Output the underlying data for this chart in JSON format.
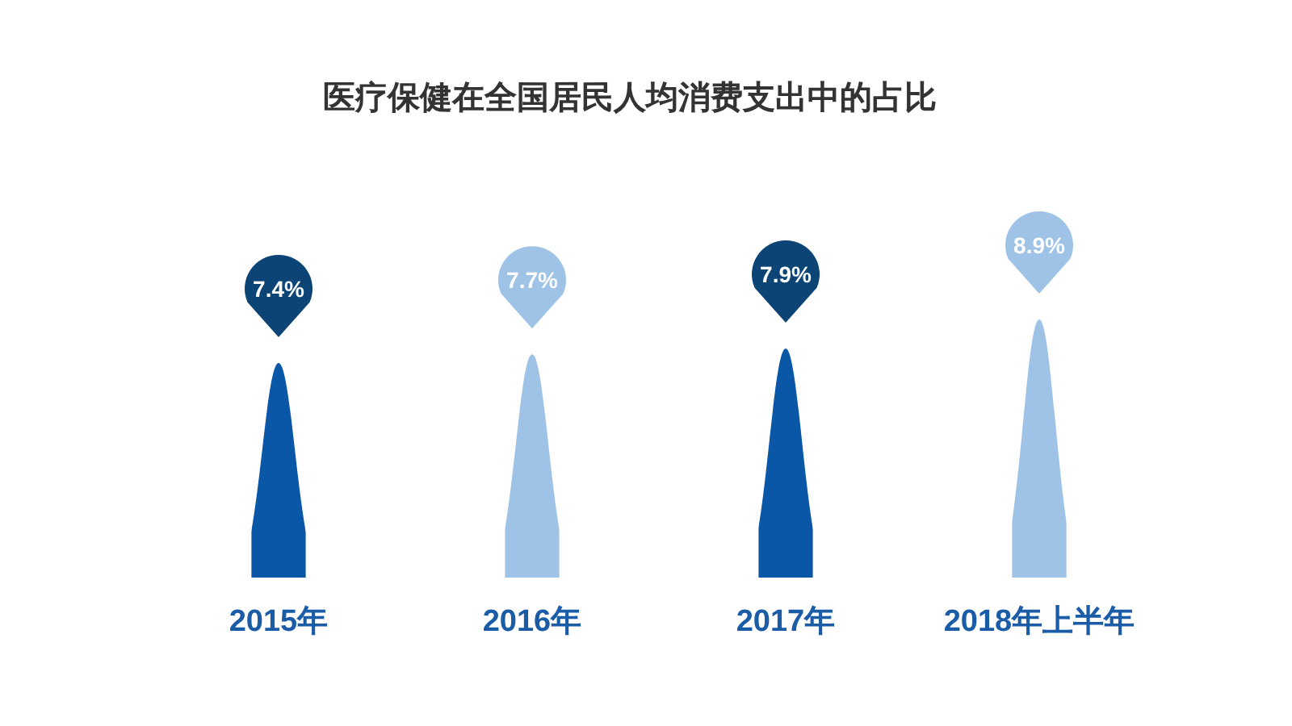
{
  "chart_data": {
    "type": "bar",
    "title": "医疗保健在全国居民人均消费支出中的占比",
    "categories": [
      "2015年",
      "2016年",
      "2017年",
      "2018年上半年"
    ],
    "values": [
      7.4,
      7.7,
      7.9,
      8.9
    ],
    "colors": [
      "#0a57a8",
      "#9fc3e7",
      "#0a57a8",
      "#9fc3e7"
    ],
    "value_labels": [
      "7.4%",
      "7.7%",
      "7.9%",
      "8.9%"
    ]
  }
}
